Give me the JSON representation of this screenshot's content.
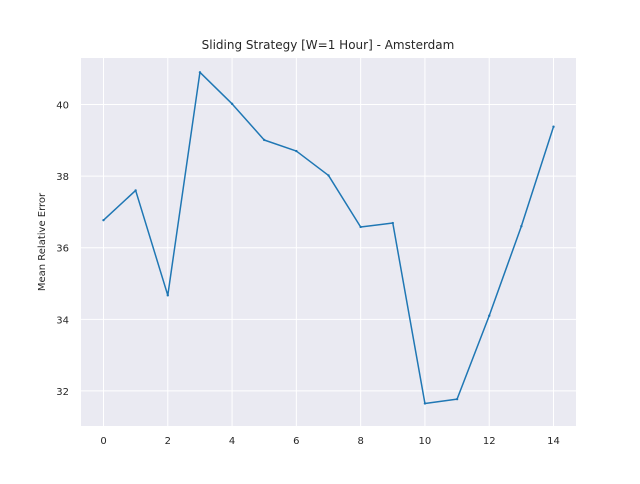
{
  "chart_data": {
    "type": "line",
    "title": "Sliding Strategy [W=1 Hour] - Amsterdam",
    "xlabel": "",
    "ylabel": "Mean Relative Error",
    "x": [
      0,
      1,
      2,
      3,
      4,
      5,
      6,
      7,
      8,
      9,
      10,
      11,
      12,
      13,
      14
    ],
    "series": [
      {
        "values": [
          36.77,
          37.6,
          34.67,
          40.9,
          40.02,
          39.01,
          38.7,
          38.02,
          36.58,
          36.69,
          31.65,
          31.77,
          34.1,
          36.6,
          39.38
        ]
      }
    ],
    "xlim": [
      -0.7,
      14.7
    ],
    "ylim": [
      31.02,
      41.3
    ],
    "xticks": [
      "0",
      "2",
      "4",
      "6",
      "8",
      "10",
      "12",
      "14"
    ],
    "xtick_values": [
      0,
      2,
      4,
      6,
      8,
      10,
      12,
      14
    ],
    "yticks": [
      "32",
      "34",
      "36",
      "38",
      "40"
    ],
    "ytick_values": [
      32,
      34,
      36,
      38,
      40
    ],
    "grid": true,
    "colors": {
      "line": "#1f77b4",
      "background": "#eaeaf2",
      "grid": "#ffffff",
      "text": "#262626"
    }
  }
}
